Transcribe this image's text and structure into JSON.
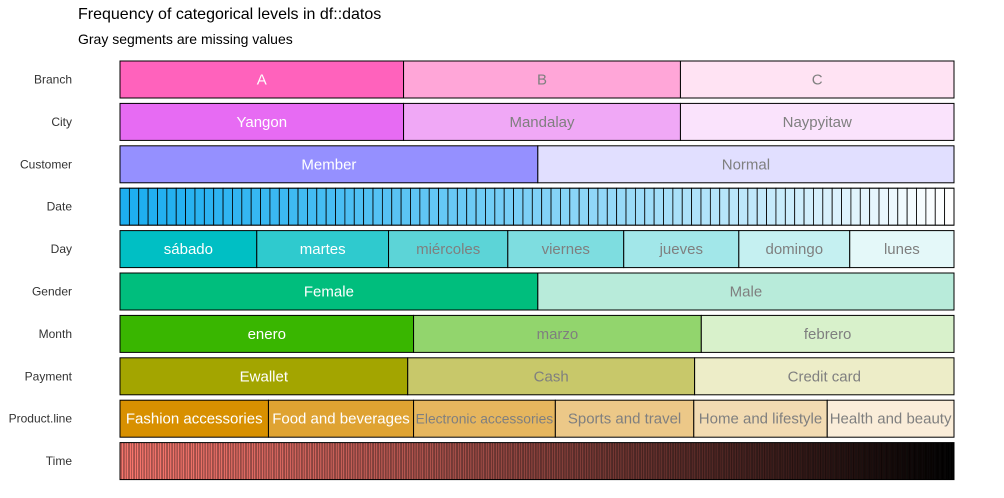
{
  "chart_data": {
    "type": "bar",
    "orientation": "horizontal",
    "stacked": true,
    "normalized": true,
    "title": "Frequency of categorical levels in df::datos",
    "subtitle": "Gray segments are missing values",
    "variables": [
      {
        "name": "Branch",
        "levels": [
          {
            "label": "A",
            "value": 0.34,
            "color": "#FF62BC"
          },
          {
            "label": "B",
            "value": 0.332,
            "color": "#FFA6D8"
          },
          {
            "label": "C",
            "value": 0.328,
            "color": "#FFE3F3"
          }
        ]
      },
      {
        "name": "City",
        "levels": [
          {
            "label": "Yangon",
            "value": 0.34,
            "color": "#E76BF3"
          },
          {
            "label": "Mandalay",
            "value": 0.332,
            "color": "#F0A8F6"
          },
          {
            "label": "Naypyitaw",
            "value": 0.328,
            "color": "#FAE3FC"
          }
        ]
      },
      {
        "name": "Customer",
        "levels": [
          {
            "label": "Member",
            "value": 0.501,
            "color": "#9590FF"
          },
          {
            "label": "Normal",
            "value": 0.499,
            "color": "#E1DFFF"
          }
        ]
      },
      {
        "name": "Date",
        "levels": [],
        "segment_count": 89,
        "color": "#1DAEF0",
        "color_end": "#FFFFFF"
      },
      {
        "name": "Day",
        "levels": [
          {
            "label": "sábado",
            "value": 0.164,
            "color": "#00BFC4"
          },
          {
            "label": "martes",
            "value": 0.158,
            "color": "#2FCACE"
          },
          {
            "label": "miércoles",
            "value": 0.143,
            "color": "#5CD4D7"
          },
          {
            "label": "viernes",
            "value": 0.139,
            "color": "#7EDDE0"
          },
          {
            "label": "jueves",
            "value": 0.138,
            "color": "#A2E7E9"
          },
          {
            "label": "domingo",
            "value": 0.133,
            "color": "#C5F0F1"
          },
          {
            "label": "lunes",
            "value": 0.125,
            "color": "#E4F8F9"
          }
        ]
      },
      {
        "name": "Gender",
        "levels": [
          {
            "label": "Female",
            "value": 0.501,
            "color": "#00BE7D"
          },
          {
            "label": "Male",
            "value": 0.499,
            "color": "#B8EBDA"
          }
        ]
      },
      {
        "name": "Month",
        "levels": [
          {
            "label": "enero",
            "value": 0.352,
            "color": "#39B600"
          },
          {
            "label": "marzo",
            "value": 0.345,
            "color": "#92D56D"
          },
          {
            "label": "febrero",
            "value": 0.303,
            "color": "#D8F1CB"
          }
        ]
      },
      {
        "name": "Payment",
        "levels": [
          {
            "label": "Ewallet",
            "value": 0.345,
            "color": "#A3A500"
          },
          {
            "label": "Cash",
            "value": 0.344,
            "color": "#C8C86A"
          },
          {
            "label": "Credit card",
            "value": 0.311,
            "color": "#EDEDC8"
          }
        ]
      },
      {
        "name": "Product.line",
        "levels": [
          {
            "label": "Fashion accessories",
            "value": 0.178,
            "color": "#D89000"
          },
          {
            "label": "Food and beverages",
            "value": 0.174,
            "color": "#DFA332"
          },
          {
            "label": "Electronic accessories",
            "value": 0.17,
            "color": "#E6B65E"
          },
          {
            "label": "Sports and travel",
            "value": 0.166,
            "color": "#ECC888"
          },
          {
            "label": "Home and lifestyle",
            "value": 0.16,
            "color": "#F2DBB2"
          },
          {
            "label": "Health and beauty",
            "value": 0.152,
            "color": "#FAEDD9"
          }
        ]
      },
      {
        "name": "Time",
        "levels": [],
        "segment_count": 506,
        "color": "#F8766D",
        "color_end": "#000000"
      }
    ],
    "xlim": [
      0,
      1
    ],
    "grid": false,
    "legend": "none"
  }
}
